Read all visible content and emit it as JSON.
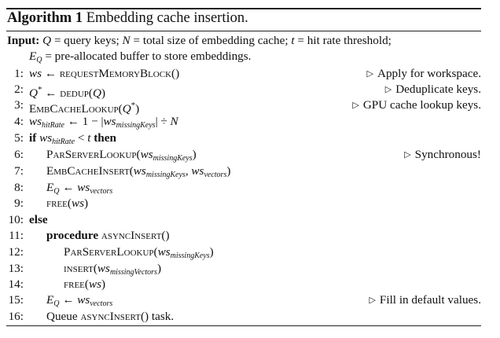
{
  "title": {
    "label": "Algorithm 1",
    "text": "Embedding cache insertion."
  },
  "input": {
    "label": "Input:",
    "line1": "Q = query keys; N = total size of embedding cache; t = hit rate threshold;",
    "line2": "E_Q = pre-allocated buffer to store embeddings."
  },
  "lines": [
    {
      "n": "1:",
      "code": "ws ← requestMemoryBlock()",
      "comment": "Apply for workspace."
    },
    {
      "n": "2:",
      "code": "Q* ← dedup(Q)",
      "comment": "Deduplicate keys."
    },
    {
      "n": "3:",
      "code": "EmbCacheLookup(Q*)",
      "comment": "GPU cache lookup keys."
    },
    {
      "n": "4:",
      "code": "ws_hitRate ← 1 − |ws_missingKeys| ÷ N",
      "comment": ""
    },
    {
      "n": "5:",
      "code": "if ws_hitRate < t then",
      "comment": ""
    },
    {
      "n": "6:",
      "code": "ParServerLookup(ws_missingKeys)",
      "comment": "Synchronous!"
    },
    {
      "n": "7:",
      "code": "EmbCacheInsert(ws_missingKeys, ws_vectors)",
      "comment": ""
    },
    {
      "n": "8:",
      "code": "E_Q ← ws_vectors",
      "comment": ""
    },
    {
      "n": "9:",
      "code": "free(ws)",
      "comment": ""
    },
    {
      "n": "10:",
      "code": "else",
      "comment": ""
    },
    {
      "n": "11:",
      "code": "procedure asyncInsert()",
      "comment": ""
    },
    {
      "n": "12:",
      "code": "ParServerLookup(ws_missingKeys)",
      "comment": ""
    },
    {
      "n": "13:",
      "code": "insert(ws_missingVectors)",
      "comment": ""
    },
    {
      "n": "14:",
      "code": "free(ws)",
      "comment": ""
    },
    {
      "n": "15:",
      "code": "E_Q ← ws_vectors",
      "comment": "Fill in default values."
    },
    {
      "n": "16:",
      "code": "Queue asyncInsert() task.",
      "comment": ""
    }
  ]
}
